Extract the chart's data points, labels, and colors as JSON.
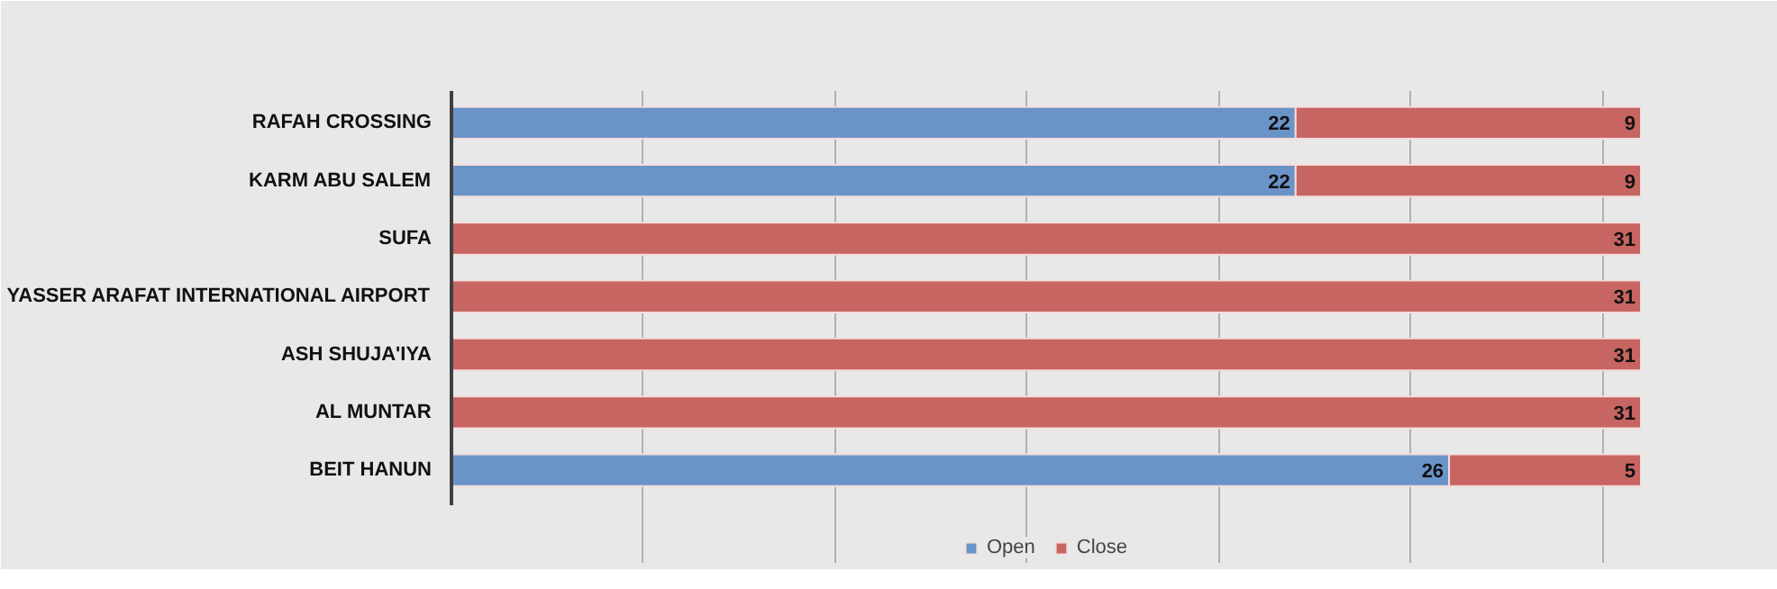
{
  "chart_data": {
    "type": "bar",
    "orientation": "horizontal",
    "stacked": true,
    "categories": [
      "RAFAH CROSSING",
      "KARM ABU SALEM",
      "SUFA",
      "YASSER ARAFAT INTERNATIONAL AIRPORT",
      "ASH SHUJA'IYA",
      "AL MUNTAR",
      "BEIT HANUN"
    ],
    "series": [
      {
        "name": "Open",
        "color": "#6a94c8",
        "values": [
          22,
          22,
          0,
          0,
          0,
          0,
          26
        ],
        "value_labels": [
          "22",
          "22",
          null,
          null,
          null,
          null,
          "26"
        ]
      },
      {
        "name": "Close",
        "color": "#c76562",
        "values": [
          9,
          9,
          31,
          31,
          31,
          31,
          5
        ],
        "value_labels": [
          "9",
          "9",
          "31",
          "31",
          "31",
          "31",
          "5"
        ]
      }
    ],
    "xlim": [
      0,
      31
    ],
    "xticks": [
      {
        "value": 0,
        "label": null
      },
      {
        "value": 5,
        "label": null
      },
      {
        "value": 10,
        "label": null
      },
      {
        "value": 15,
        "label": null
      },
      {
        "value": 20,
        "label": null
      },
      {
        "value": 25,
        "label": null
      },
      {
        "value": 30,
        "label": null
      }
    ],
    "tick_labels": "y",
    "grid": "x",
    "legend": "bottom"
  }
}
